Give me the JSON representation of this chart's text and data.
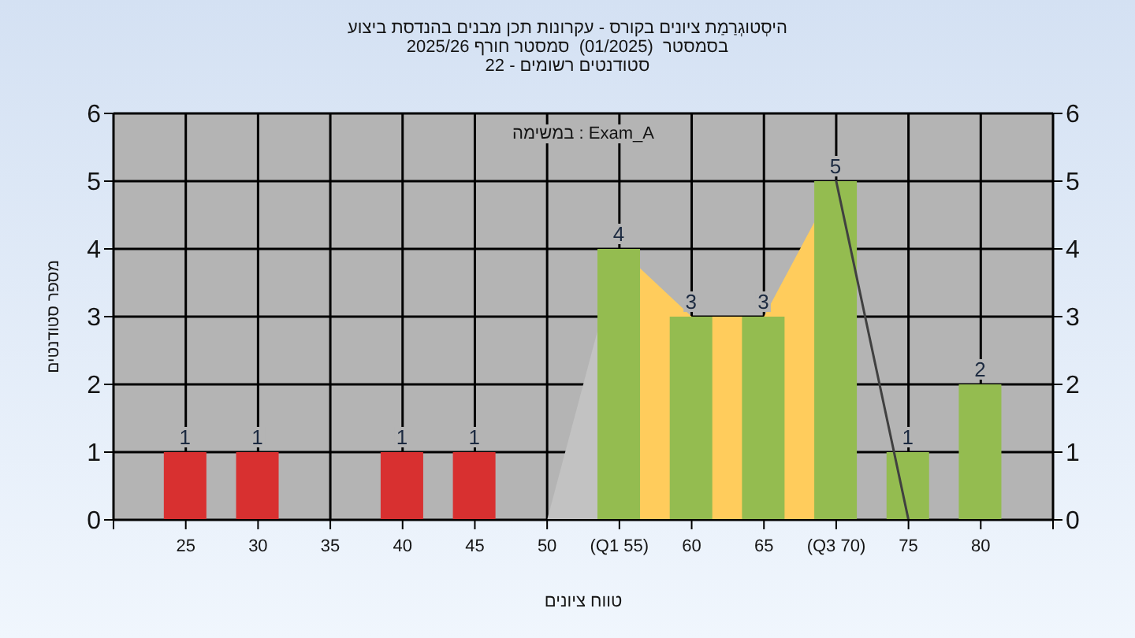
{
  "chart_data": {
    "type": "bar",
    "title": "היסְטוגְרַמַת ציונים בקורס - עקרונות תכן מבנים בהנדסת ביצוע",
    "subtitle": "בסמסטר  (01/2025)  סמסטר חורף 2025/26\nסטודנטים רשומים - 22",
    "xlabel": "טווח ציונים",
    "ylabel": "מספר סטודנטים",
    "annotations": [
      "במשימה : Exam_A"
    ],
    "xlim": [
      20,
      85
    ],
    "xticks": [
      {
        "value": 20,
        "label": null
      },
      25,
      30,
      35,
      40,
      45,
      50,
      {
        "value": 55,
        "label": "(Q1 55)"
      },
      60,
      65,
      {
        "value": 70,
        "label": "(Q3 70)"
      },
      75,
      80,
      {
        "value": 85,
        "label": null
      }
    ],
    "ylim": [
      0,
      6
    ],
    "yticks": [
      0,
      1,
      2,
      3,
      4,
      5,
      6
    ],
    "y2lim": [
      0,
      6
    ],
    "y2ticks": [
      0,
      1,
      2,
      3,
      4,
      5,
      6
    ],
    "grid": true,
    "series": [
      {
        "type": "area",
        "color": "#c2c2c2",
        "x": [
          50,
          55
        ],
        "values": [
          0,
          4
        ]
      },
      {
        "type": "area",
        "color": "#ffcc5c",
        "x": [
          55,
          60,
          65,
          70
        ],
        "values": [
          4,
          3,
          3,
          5
        ]
      },
      {
        "type": "line",
        "color": "#404040",
        "x": [
          70,
          75
        ],
        "values": [
          5,
          0
        ]
      },
      {
        "x": [
          25,
          30,
          35,
          40,
          45,
          50,
          55,
          60,
          65,
          70,
          75,
          80
        ],
        "values": [
          1,
          1,
          0,
          1,
          1,
          0,
          4,
          3,
          3,
          5,
          1,
          2
        ],
        "colors": [
          "#d83030",
          "#d83030",
          "#d83030",
          "#d83030",
          "#d83030",
          "#d83030",
          "#94bc50",
          "#94bc50",
          "#94bc50",
          "#94bc50",
          "#94bc50",
          "#94bc50"
        ],
        "value_labels": [
          "1",
          "1",
          null,
          "1",
          "1",
          null,
          "4",
          "3",
          "3",
          "5",
          "1",
          "2"
        ]
      }
    ]
  }
}
